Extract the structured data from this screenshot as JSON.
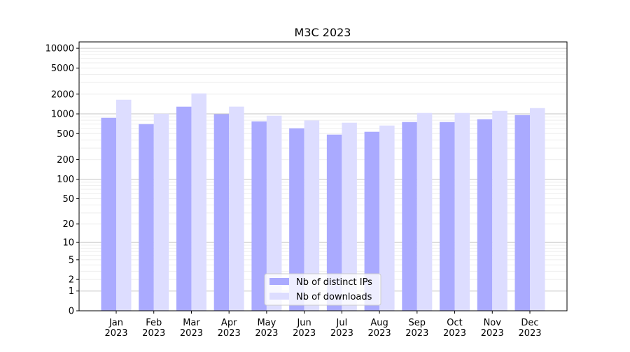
{
  "chart_data": {
    "type": "bar",
    "title": "M3C 2023",
    "xlabel": "",
    "ylabel": "",
    "y_scale": "log(1+x)",
    "ylim": [
      0,
      12500
    ],
    "yticks": [
      0,
      1,
      2,
      5,
      10,
      20,
      50,
      100,
      200,
      500,
      1000,
      2000,
      5000,
      10000
    ],
    "grid": true,
    "legend_position": "bottom-center",
    "categories": [
      "Jan\n2023",
      "Feb\n2023",
      "Mar\n2023",
      "Apr\n2023",
      "May\n2023",
      "Jun\n2023",
      "Jul\n2023",
      "Aug\n2023",
      "Sep\n2023",
      "Oct\n2023",
      "Nov\n2023",
      "Dec\n2023"
    ],
    "series": [
      {
        "name": "Nb of distinct IPs",
        "color": "#aaaaff",
        "values": [
          870,
          698,
          1288,
          990,
          769,
          602,
          483,
          533,
          751,
          751,
          828,
          959
        ]
      },
      {
        "name": "Nb of downloads",
        "color": "#ddddff",
        "values": [
          1644,
          1005,
          2050,
          1290,
          936,
          794,
          733,
          664,
          1032,
          1032,
          1111,
          1225
        ]
      }
    ]
  }
}
